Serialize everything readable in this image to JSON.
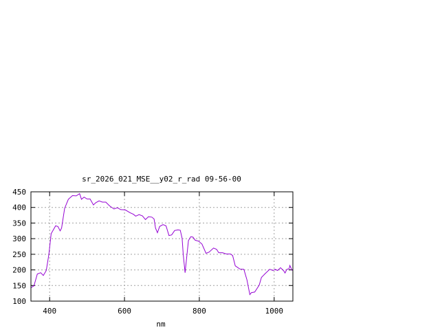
{
  "chart_data": {
    "type": "line",
    "title": "sr_2026_021_MSE__y02_r_rad 09-56-00",
    "xlabel": "nm",
    "ylabel": "",
    "xlim": [
      350,
      1050
    ],
    "ylim": [
      100,
      450
    ],
    "xticks": [
      400,
      600,
      800,
      1000
    ],
    "yticks": [
      100,
      150,
      200,
      250,
      300,
      350,
      400,
      450
    ],
    "grid": true,
    "line_color": "#9400d3",
    "series": [
      {
        "x": [
          350,
          358,
          367,
          376,
          383,
          391,
          398,
          404,
          416,
          422,
          428,
          432,
          440,
          450,
          461,
          471,
          480,
          485,
          492,
          500,
          508,
          517,
          523,
          532,
          541,
          550,
          560,
          572,
          581,
          590,
          602,
          615,
          624,
          630,
          639,
          648,
          656,
          664,
          673,
          679,
          683,
          688,
          694,
          703,
          711,
          719,
          726,
          734,
          743,
          749,
          754,
          757,
          762,
          767,
          771,
          777,
          783,
          789,
          798,
          807,
          818,
          826,
          838,
          846,
          852,
          862,
          872,
          883,
          889,
          896,
          908,
          919,
          927,
          935,
          939,
          948,
          960,
          966,
          975,
          988,
          997,
          1003,
          1009,
          1017,
          1025,
          1029,
          1034,
          1040,
          1042,
          1048
        ],
        "y": [
          143,
          149,
          187,
          191,
          182,
          198,
          250,
          316,
          341,
          339,
          325,
          334,
          397,
          426,
          438,
          437,
          444,
          426,
          433,
          427,
          427,
          408,
          415,
          421,
          417,
          417,
          405,
          395,
          399,
          393,
          392,
          383,
          378,
          372,
          377,
          373,
          361,
          370,
          369,
          363,
          334,
          319,
          339,
          345,
          341,
          310,
          312,
          326,
          328,
          327,
          301,
          250,
          191,
          250,
          294,
          306,
          305,
          295,
          292,
          283,
          253,
          257,
          270,
          266,
          255,
          255,
          251,
          251,
          246,
          213,
          203,
          202,
          169,
          121,
          127,
          129,
          151,
          176,
          187,
          202,
          198,
          202,
          198,
          207,
          198,
          190,
          202,
          204,
          214,
          198
        ]
      }
    ]
  }
}
